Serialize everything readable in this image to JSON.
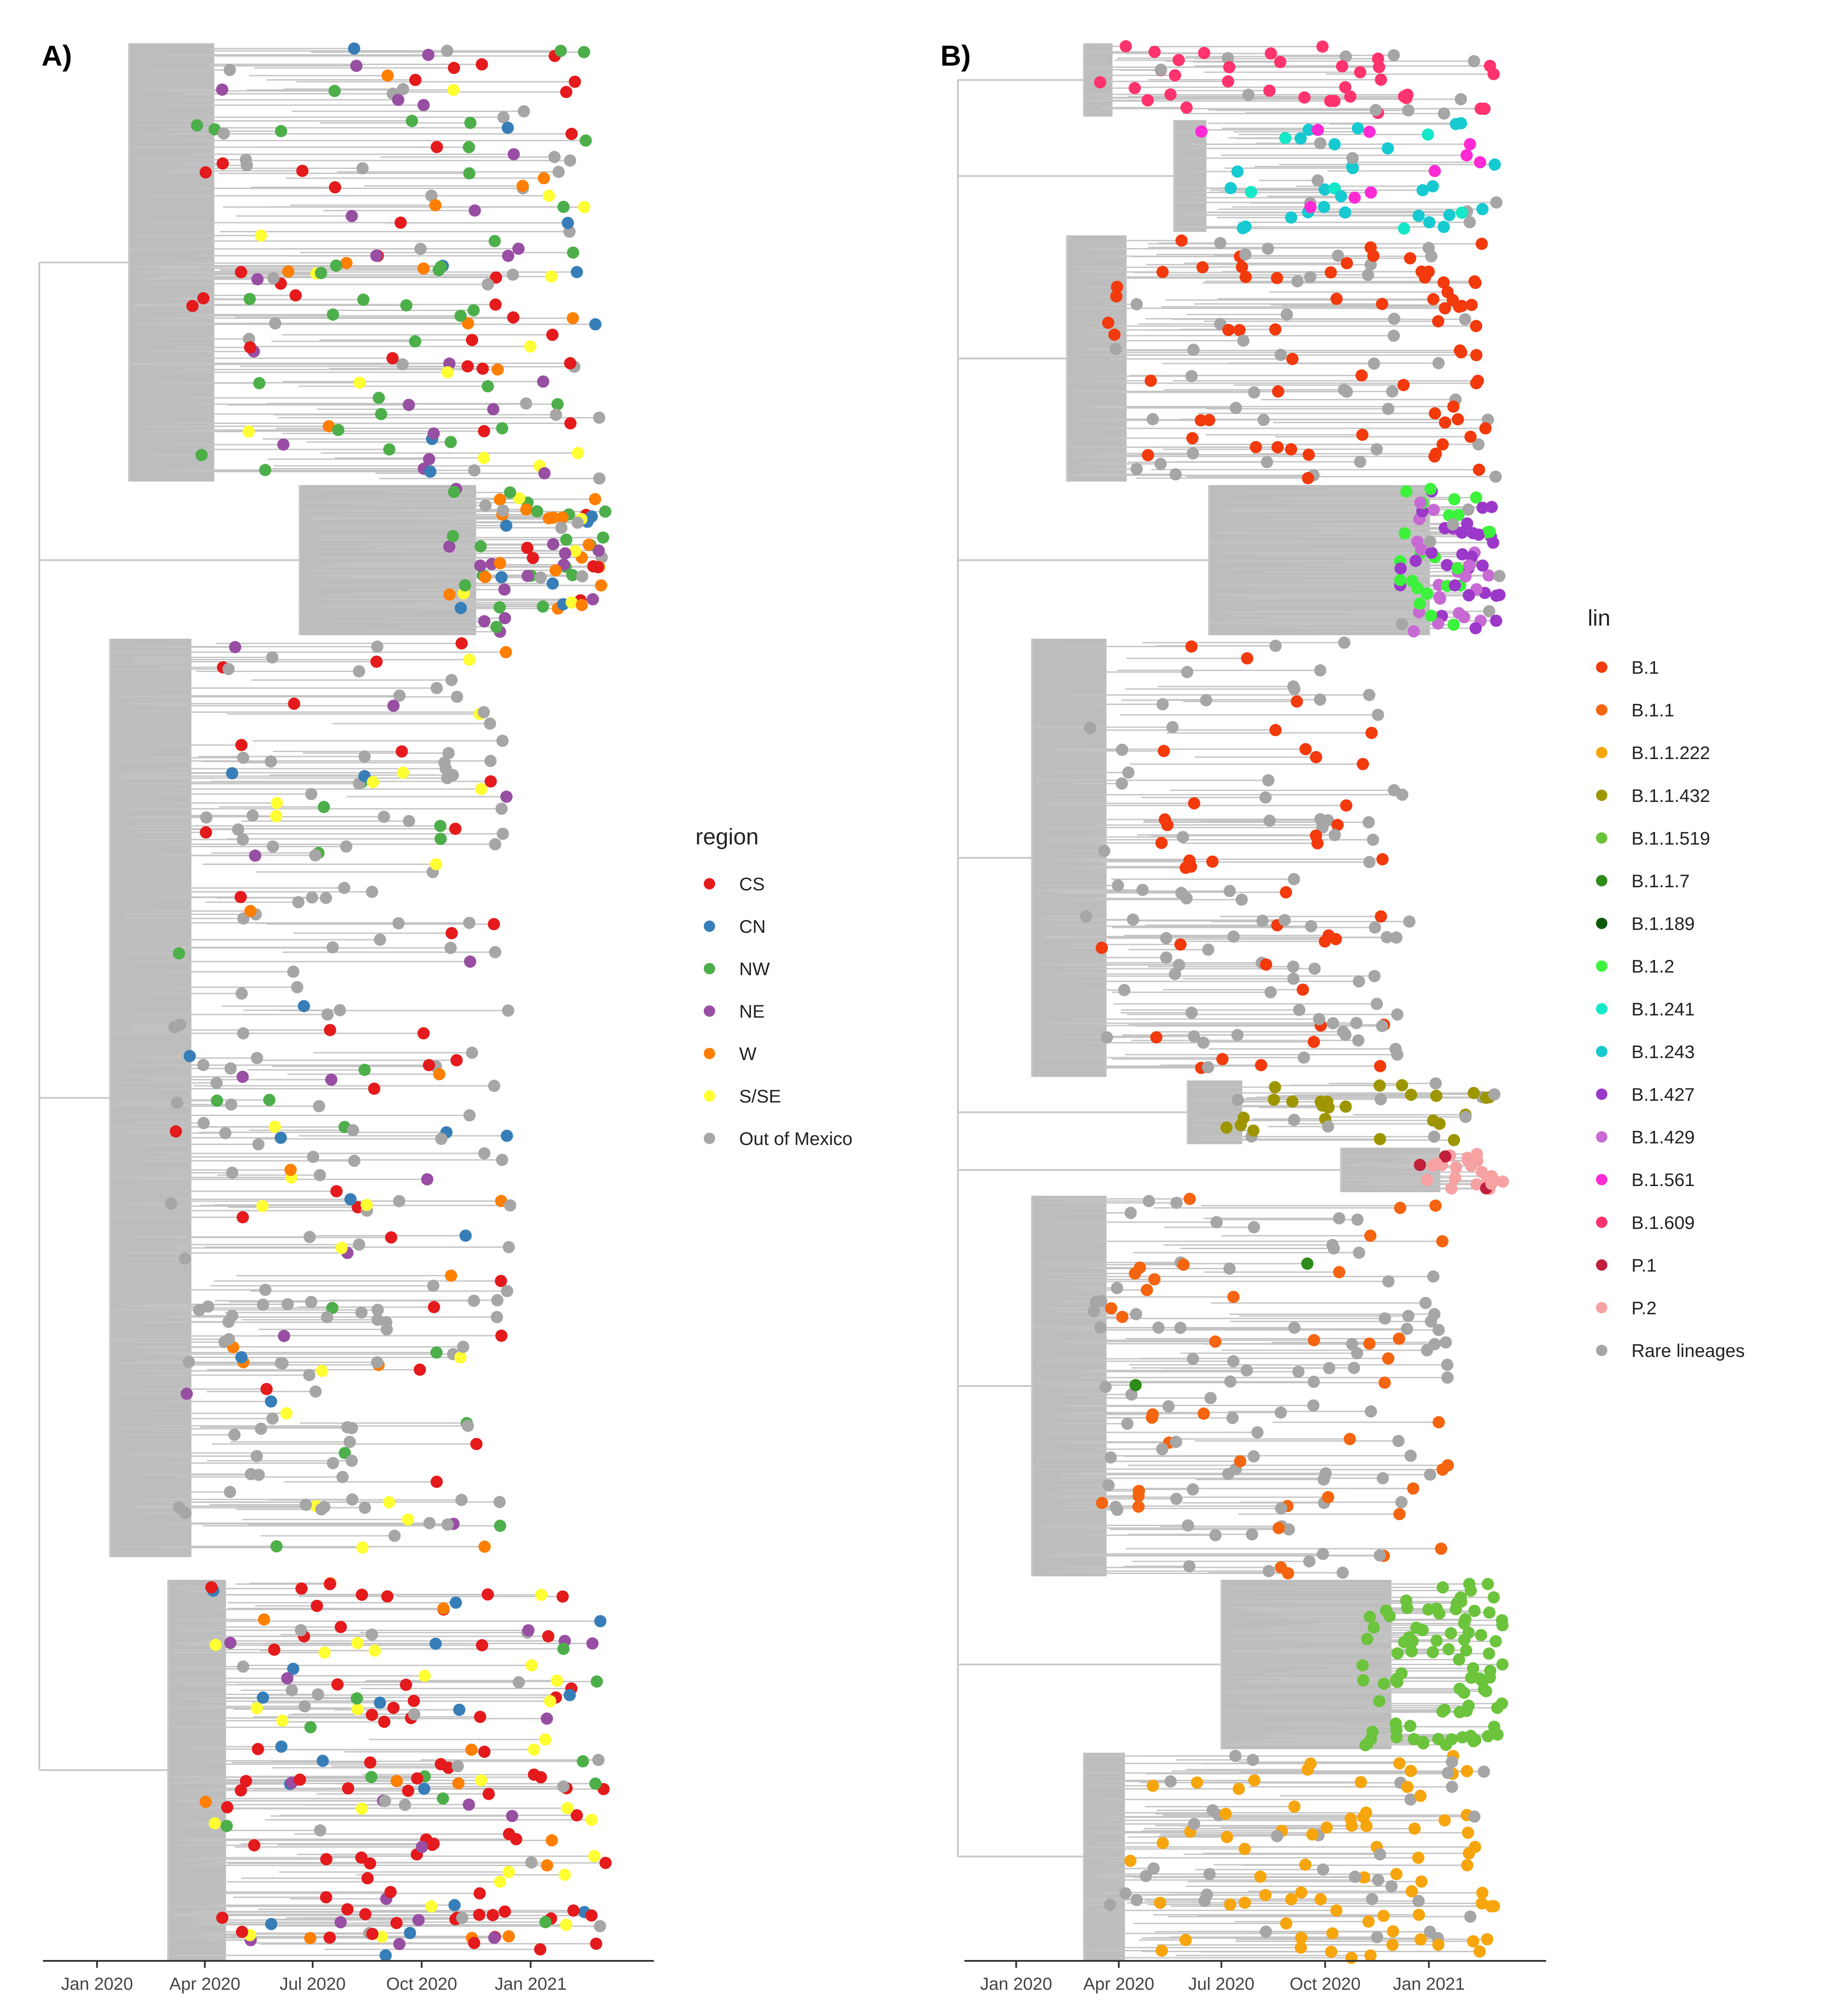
{
  "chart_data": [
    {
      "type": "scatter",
      "subtype": "time-scaled phylogenetic tree",
      "panel_label": "A)",
      "x_ticks": [
        "Jan 2020",
        "Apr 2020",
        "Jul 2020",
        "Oct 2020",
        "Jan 2021"
      ],
      "xlim": [
        "2019-11-20",
        "2021-04-15"
      ],
      "legend": {
        "title": "region",
        "position": "right",
        "entries": [
          {
            "label": "CS",
            "color": "#e41a1c"
          },
          {
            "label": "CN",
            "color": "#377eb8"
          },
          {
            "label": "NW",
            "color": "#4daf4a"
          },
          {
            "label": "NE",
            "color": "#984ea3"
          },
          {
            "label": "W",
            "color": "#ff7f00"
          },
          {
            "label": "S/SE",
            "color": "#ffff33"
          },
          {
            "label": "Out of Mexico",
            "color": "#a6a6a6"
          }
        ]
      },
      "clades": [
        {
          "rank_top": 0.0,
          "rank_bottom": 0.23,
          "root_date": "2020-01-28",
          "sample_from": "2020-03-20",
          "sample_to": "2021-02-28",
          "colors": [
            "CS",
            "NW",
            "NE",
            "CN",
            "S/SE",
            "W",
            "Out of Mexico"
          ],
          "weights": [
            0.2,
            0.24,
            0.12,
            0.09,
            0.09,
            0.08,
            0.18
          ],
          "n_tips": 150
        },
        {
          "rank_top": 0.23,
          "rank_bottom": 0.31,
          "root_date": "2020-06-20",
          "sample_from": "2020-10-20",
          "sample_to": "2021-03-05",
          "colors": [
            "NW",
            "W",
            "NE",
            "CN",
            "CS",
            "S/SE",
            "Out of Mexico"
          ],
          "weights": [
            0.25,
            0.2,
            0.17,
            0.12,
            0.1,
            0.06,
            0.1
          ],
          "n_tips": 75
        },
        {
          "rank_top": 0.31,
          "rank_bottom": 0.79,
          "root_date": "2020-01-12",
          "sample_from": "2020-03-01",
          "sample_to": "2020-12-15",
          "colors": [
            "Out of Mexico",
            "CS",
            "CN",
            "NE",
            "S/SE",
            "W",
            "NW"
          ],
          "weights": [
            0.6,
            0.12,
            0.06,
            0.08,
            0.07,
            0.03,
            0.04
          ],
          "n_tips": 240
        },
        {
          "rank_top": 0.8,
          "rank_bottom": 1.0,
          "root_date": "2020-03-01",
          "sample_from": "2020-04-01",
          "sample_to": "2021-03-08",
          "colors": [
            "CS",
            "S/SE",
            "CN",
            "NE",
            "W",
            "NW",
            "Out of Mexico"
          ],
          "weights": [
            0.42,
            0.16,
            0.11,
            0.08,
            0.08,
            0.05,
            0.1
          ],
          "n_tips": 180
        }
      ]
    },
    {
      "type": "scatter",
      "subtype": "time-scaled phylogenetic tree",
      "panel_label": "B)",
      "x_ticks": [
        "Jan 2020",
        "Apr 2020",
        "Jul 2020",
        "Oct 2020",
        "Jan 2021"
      ],
      "xlim": [
        "2019-11-20",
        "2021-04-15"
      ],
      "legend": {
        "title": "lin",
        "position": "right",
        "entries": [
          {
            "label": "B.1",
            "color": "#f23a0c"
          },
          {
            "label": "B.1.1",
            "color": "#f5640f"
          },
          {
            "label": "B.1.1.222",
            "color": "#f7a50c"
          },
          {
            "label": "B.1.1.432",
            "color": "#9e9600"
          },
          {
            "label": "B.1.1.519",
            "color": "#6cc33c"
          },
          {
            "label": "B.1.1.7",
            "color": "#2d8c1a"
          },
          {
            "label": "B.1.189",
            "color": "#0b5a0b"
          },
          {
            "label": "B.1.2",
            "color": "#3df23d"
          },
          {
            "label": "B.1.241",
            "color": "#15e8c8"
          },
          {
            "label": "B.1.243",
            "color": "#17c9d0"
          },
          {
            "label": "B.1.427",
            "color": "#9b38c9"
          },
          {
            "label": "B.1.429",
            "color": "#c86ad3"
          },
          {
            "label": "B.1.561",
            "color": "#ff2ad4"
          },
          {
            "label": "B.1.609",
            "color": "#ff336e"
          },
          {
            "label": "P.1",
            "color": "#c11f3b"
          },
          {
            "label": "P.2",
            "color": "#f7a2a2"
          },
          {
            "label": "Rare lineages",
            "color": "#a6a6a6"
          }
        ]
      },
      "clades": [
        {
          "rank_top": 0.0,
          "rank_bottom": 0.04,
          "root_date": "2020-03-01",
          "sample_from": "2020-03-10",
          "sample_to": "2021-03-05",
          "colors": [
            "B.1.609",
            "Rare lineages"
          ],
          "weights": [
            0.8,
            0.2
          ],
          "n_tips": 45
        },
        {
          "rank_top": 0.04,
          "rank_bottom": 0.1,
          "root_date": "2020-05-20",
          "sample_from": "2020-06-01",
          "sample_to": "2021-03-05",
          "colors": [
            "B.1.243",
            "B.1.241",
            "B.1.561",
            "Rare lineages"
          ],
          "weights": [
            0.45,
            0.15,
            0.2,
            0.2
          ],
          "n_tips": 50
        },
        {
          "rank_top": 0.1,
          "rank_bottom": 0.23,
          "root_date": "2020-02-15",
          "sample_from": "2020-03-20",
          "sample_to": "2021-03-05",
          "colors": [
            "B.1",
            "Rare lineages"
          ],
          "weights": [
            0.55,
            0.45
          ],
          "n_tips": 110
        },
        {
          "rank_top": 0.23,
          "rank_bottom": 0.31,
          "root_date": "2020-06-20",
          "sample_from": "2020-12-01",
          "sample_to": "2021-03-05",
          "colors": [
            "B.1.429",
            "B.1.427",
            "B.1.2",
            "Rare lineages"
          ],
          "weights": [
            0.3,
            0.3,
            0.3,
            0.1
          ],
          "n_tips": 80
        },
        {
          "rank_top": 0.31,
          "rank_bottom": 0.54,
          "root_date": "2020-01-15",
          "sample_from": "2020-03-01",
          "sample_to": "2020-12-15",
          "colors": [
            "B.1",
            "Rare lineages"
          ],
          "weights": [
            0.35,
            0.65
          ],
          "n_tips": 120
        },
        {
          "rank_top": 0.54,
          "rank_bottom": 0.575,
          "root_date": "2020-06-01",
          "sample_from": "2020-07-01",
          "sample_to": "2021-03-05",
          "colors": [
            "B.1.1.432",
            "Rare lineages"
          ],
          "weights": [
            0.8,
            0.2
          ],
          "n_tips": 35
        },
        {
          "rank_top": 0.575,
          "rank_bottom": 0.6,
          "root_date": "2020-10-15",
          "sample_from": "2020-12-20",
          "sample_to": "2021-03-08",
          "colors": [
            "P.2",
            "P.1"
          ],
          "weights": [
            0.85,
            0.15
          ],
          "n_tips": 25
        },
        {
          "rank_top": 0.6,
          "rank_bottom": 0.8,
          "root_date": "2020-01-15",
          "sample_from": "2020-03-01",
          "sample_to": "2021-01-20",
          "colors": [
            "Rare lineages",
            "B.1.1",
            "B.1.1.7"
          ],
          "weights": [
            0.65,
            0.3,
            0.05
          ],
          "n_tips": 130
        },
        {
          "rank_top": 0.8,
          "rank_bottom": 0.89,
          "root_date": "2020-07-01",
          "sample_from": "2020-11-01",
          "sample_to": "2021-03-08",
          "colors": [
            "B.1.1.519"
          ],
          "weights": [
            1.0
          ],
          "n_tips": 90
        },
        {
          "rank_top": 0.89,
          "rank_bottom": 1.0,
          "root_date": "2020-03-01",
          "sample_from": "2020-03-20",
          "sample_to": "2021-03-05",
          "colors": [
            "B.1.1.222",
            "Rare lineages"
          ],
          "weights": [
            0.8,
            0.2
          ],
          "n_tips": 110
        }
      ]
    }
  ]
}
